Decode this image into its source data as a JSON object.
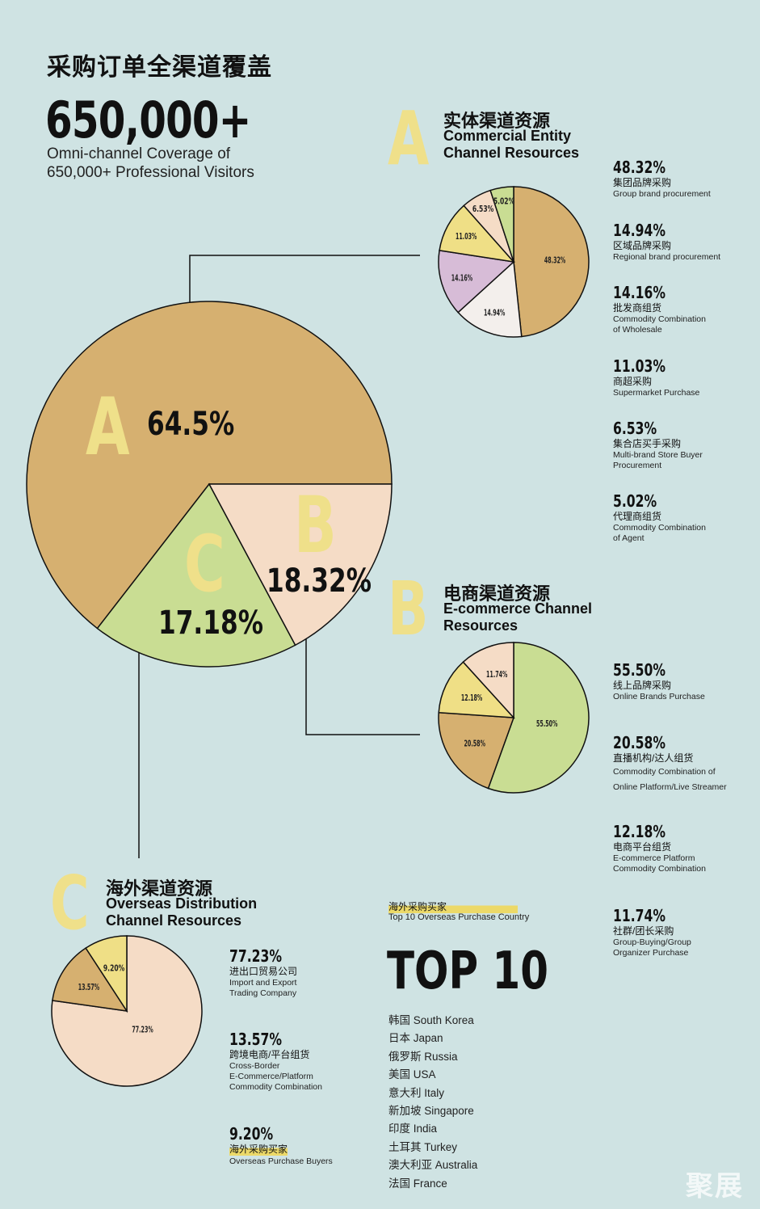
{
  "title": "采购订单全渠道覆盖",
  "headline": {
    "number": "650,000+",
    "line1": "Omni-channel Coverage of",
    "line2": "650,000+ Professional Visitors"
  },
  "main_labels": {
    "a_letter": "A",
    "b_letter": "B",
    "c_letter": "C",
    "a_pct": "64.5%",
    "b_pct": "18.32%",
    "c_pct": "17.18%"
  },
  "sections": {
    "a": {
      "letter": "A",
      "zh": "实体渠道资源",
      "en1": "Commercial Entity",
      "en2": "Channel Resources",
      "stats": [
        {
          "pct": "48.32%",
          "zh": "集团品牌采购",
          "en1": "Group brand procurement",
          "en2": ""
        },
        {
          "pct": "14.94%",
          "zh": "区域品牌采购",
          "en1": "Regional brand  procurement",
          "en2": ""
        },
        {
          "pct": "14.16%",
          "zh": "批发商组货",
          "en1": "Commodity Combination",
          "en2": "of Wholesale"
        },
        {
          "pct": "11.03%",
          "zh": "商超采购",
          "en1": "Supermarket Purchase",
          "en2": ""
        },
        {
          "pct": "6.53%",
          "zh": "集合店买手采购",
          "en1": "Multi-brand Store Buyer",
          "en2": "Procurement"
        },
        {
          "pct": "5.02%",
          "zh": "代理商组货",
          "en1": "Commodity Combination",
          "en2": "of Agent"
        }
      ]
    },
    "b": {
      "letter": "B",
      "zh": "电商渠道资源",
      "en1": "E-commerce Channel",
      "en2": "Resources",
      "stats": [
        {
          "pct": "55.50%",
          "zh": "线上品牌采购",
          "en1": "Online Brands Purchase",
          "en2": ""
        },
        {
          "pct": "20.58%",
          "zh": "直播机构/达人组货",
          "en1": "Commodity Combination of",
          "en2": "Online Platform/Live Streamer"
        },
        {
          "pct": "12.18%",
          "zh": "电商平台组货",
          "en1": "E-commerce Platform",
          "en2": "Commodity Combination"
        },
        {
          "pct": "11.74%",
          "zh": "社群/团长采购",
          "en1": "Group-Buying/Group",
          "en2": "Organizer Purchase"
        }
      ]
    },
    "c": {
      "letter": "C",
      "zh": "海外渠道资源",
      "en1": "Overseas Distribution",
      "en2": "Channel Resources",
      "stats": [
        {
          "pct": "77.23%",
          "zh": "进出口贸易公司",
          "en1": "Import and Export",
          "en2": "Trading Company",
          "en3": ""
        },
        {
          "pct": "13.57%",
          "zh": "跨境电商/平台组货",
          "en1": "Cross-Border",
          "en2": "E-Commerce/Platform",
          "en3": "Commodity Combination"
        },
        {
          "pct": "9.20%",
          "zh": "海外采购买家",
          "en1": "Overseas Purchase Buyers",
          "en2": "",
          "en3": ""
        }
      ]
    }
  },
  "top10": {
    "zh": "海外采购买家",
    "en": "Top 10 Overseas Purchase Country",
    "title": "TOP 10",
    "countries": [
      "韩国 South Korea",
      "日本 Japan",
      "俄罗斯 Russia",
      "美国 USA",
      "意大利 Italy",
      "新加坡 Singapore",
      "印度 India",
      "土耳其 Turkey",
      "澳大利亚 Australia",
      "法国 France"
    ]
  },
  "watermark": "聚展",
  "chart_data": [
    {
      "type": "pie",
      "categories": [
        "A",
        "B",
        "C"
      ],
      "values": [
        64.5,
        18.32,
        17.18
      ],
      "colors": [
        "#d6b070",
        "#c9dd93",
        "#f5dcc6"
      ]
    },
    {
      "type": "pie",
      "categories": [
        "集团品牌采购",
        "区域品牌采购",
        "批发商组货",
        "商超采购",
        "集合店买手采购",
        "代理商组货"
      ],
      "values": [
        48.32,
        14.94,
        14.16,
        11.03,
        6.53,
        5.02
      ],
      "labels": [
        "48.32%",
        "14.94%",
        "14.16%",
        "11.03%",
        "6.53%",
        "5.02%"
      ],
      "colors": [
        "#d6b070",
        "#f3efec",
        "#d7bcd7",
        "#efdf86",
        "#f5dcc6",
        "#c9dd93"
      ]
    },
    {
      "type": "pie",
      "categories": [
        "线上品牌采购",
        "直播机构/达人组货",
        "电商平台组货",
        "社群/团长采购"
      ],
      "values": [
        55.5,
        20.58,
        12.18,
        11.74
      ],
      "labels": [
        "55.50%",
        "20.58%",
        "12.18%",
        "11.74%"
      ],
      "colors": [
        "#c9dd93",
        "#d6b070",
        "#efdf86",
        "#f5dcc6"
      ]
    },
    {
      "type": "pie",
      "categories": [
        "进出口贸易公司",
        "跨境电商/平台组货",
        "海外采购买家"
      ],
      "values": [
        77.23,
        13.57,
        9.2
      ],
      "labels": [
        "77.23%",
        "13.57%",
        "9.20%"
      ],
      "colors": [
        "#f5dcc6",
        "#d6b070",
        "#efdf86"
      ]
    }
  ]
}
